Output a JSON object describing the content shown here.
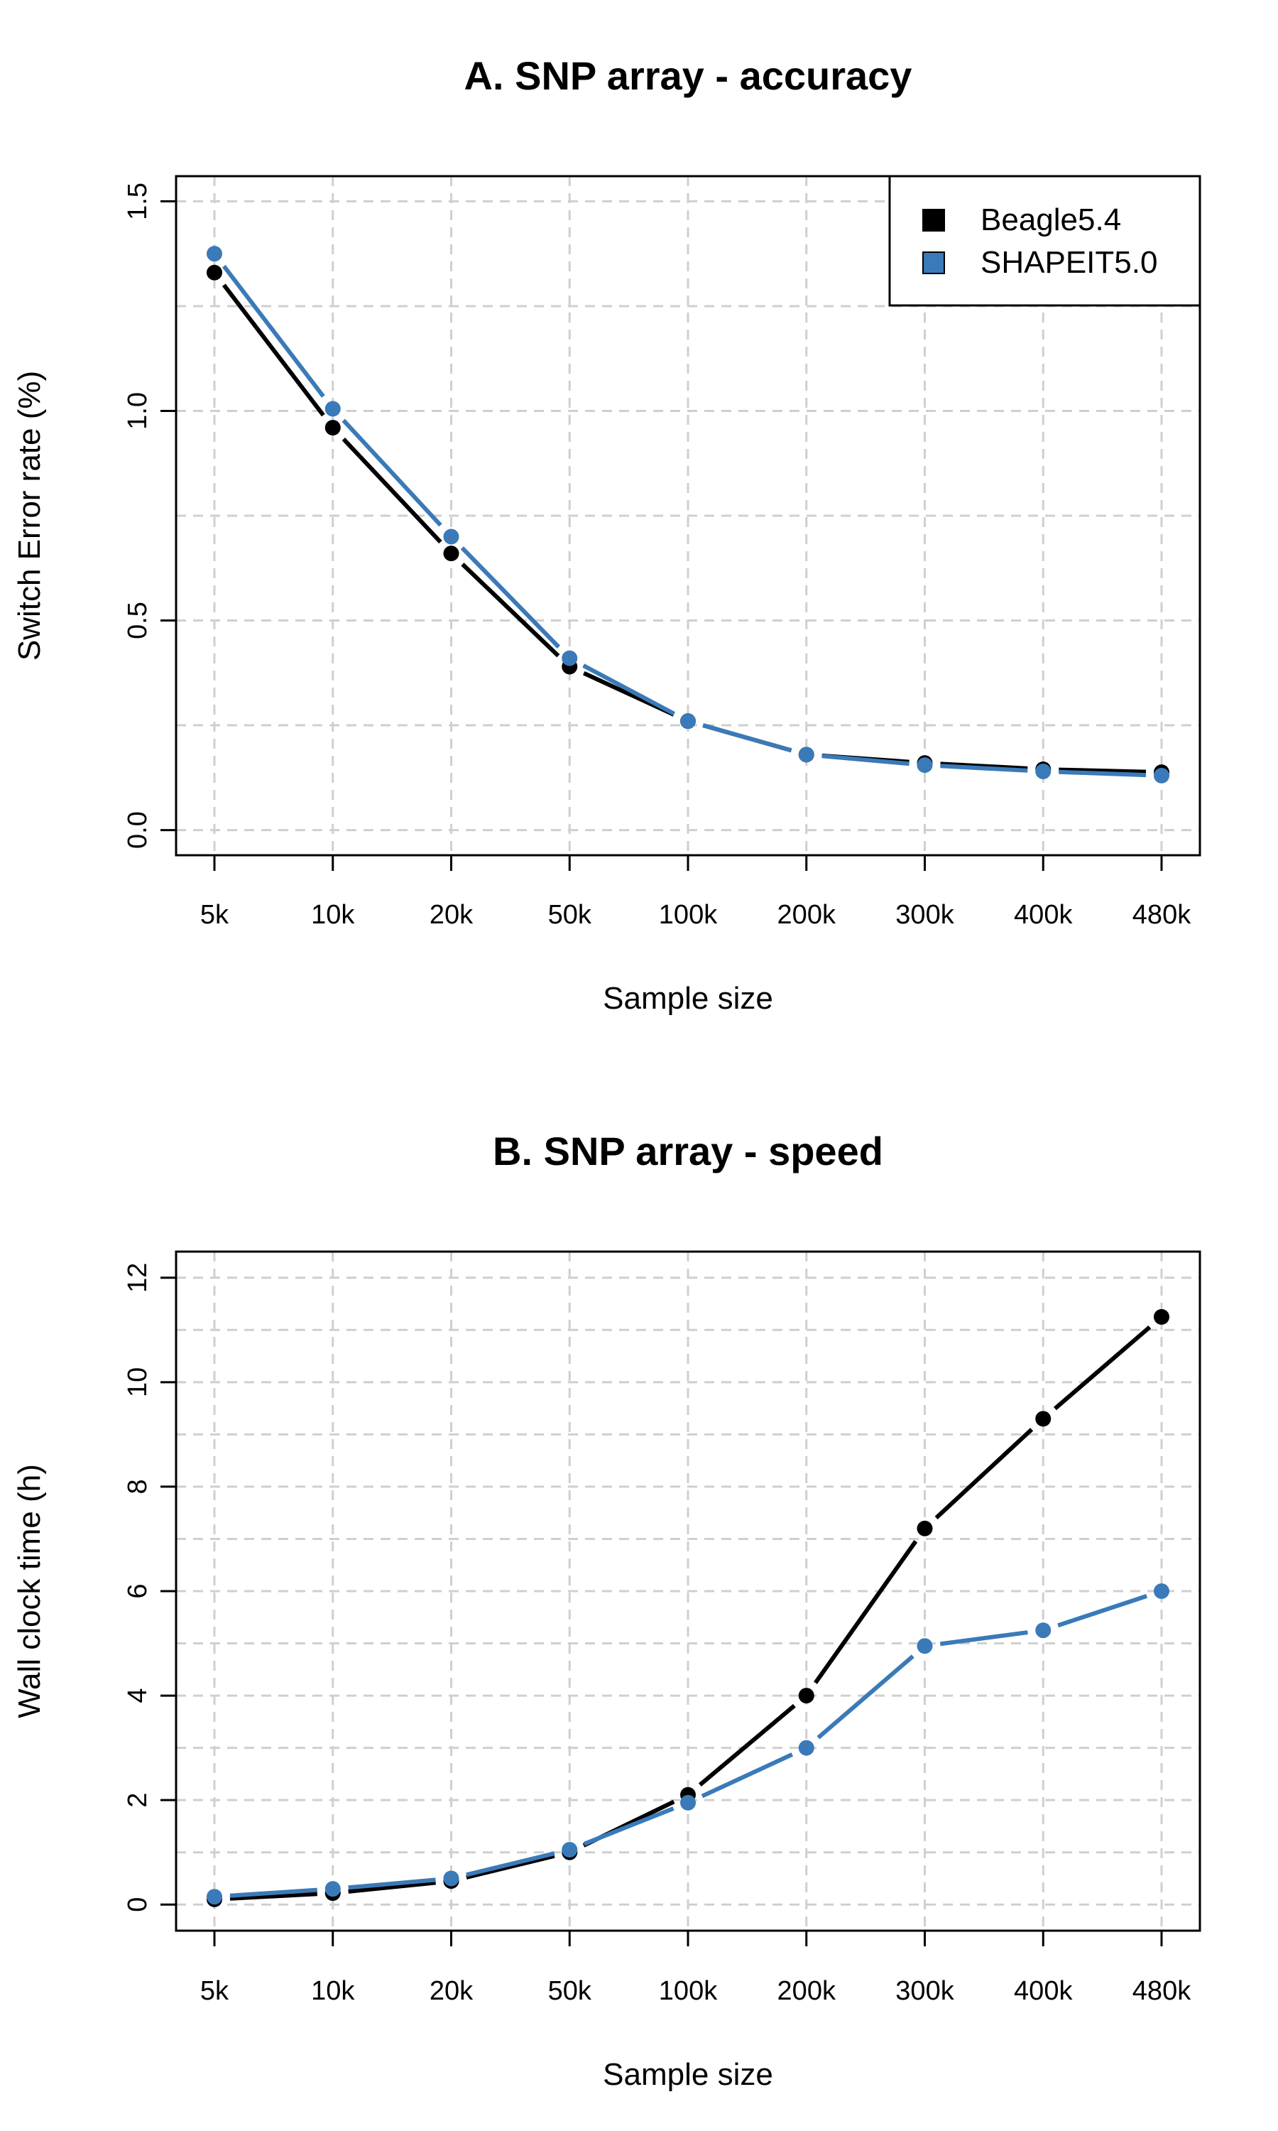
{
  "chart_data": [
    {
      "type": "line",
      "title": "A. SNP array - accuracy",
      "xlabel": "Sample size",
      "ylabel": "Switch Error rate (%)",
      "categories": [
        "5k",
        "10k",
        "20k",
        "50k",
        "100k",
        "200k",
        "300k",
        "400k",
        "480k"
      ],
      "ylim": [
        -0.06,
        1.56
      ],
      "yticks": [
        0.0,
        0.5,
        1.0,
        1.5
      ],
      "ytick_labels": [
        "0.0",
        "0.5",
        "1.0",
        "1.5"
      ],
      "grid": true,
      "legend": "top-right",
      "series": [
        {
          "name": "Beagle5.4",
          "color": "#000000",
          "values": [
            1.33,
            0.96,
            0.66,
            0.39,
            0.26,
            0.18,
            0.16,
            0.145,
            0.138
          ]
        },
        {
          "name": "SHAPEIT5.0",
          "color": "#3a7ab8",
          "values": [
            1.375,
            1.005,
            0.7,
            0.41,
            0.26,
            0.18,
            0.155,
            0.14,
            0.13
          ]
        }
      ]
    },
    {
      "type": "line",
      "title": "B. SNP array - speed",
      "xlabel": "Sample size",
      "ylabel": "Wall clock time (h)",
      "categories": [
        "5k",
        "10k",
        "20k",
        "50k",
        "100k",
        "200k",
        "300k",
        "400k",
        "480k"
      ],
      "ylim": [
        -0.5,
        12.5
      ],
      "yticks": [
        0,
        2,
        4,
        6,
        8,
        10,
        12
      ],
      "ytick_labels": [
        "0",
        "2",
        "4",
        "6",
        "8",
        "10",
        "12"
      ],
      "grid": true,
      "series": [
        {
          "name": "Beagle5.4",
          "color": "#000000",
          "values": [
            0.1,
            0.22,
            0.45,
            1.0,
            2.1,
            4.0,
            7.2,
            9.3,
            11.25
          ]
        },
        {
          "name": "SHAPEIT5.0",
          "color": "#3a7ab8",
          "values": [
            0.15,
            0.3,
            0.5,
            1.05,
            1.95,
            3.0,
            4.95,
            5.25,
            6.0
          ]
        }
      ]
    }
  ]
}
